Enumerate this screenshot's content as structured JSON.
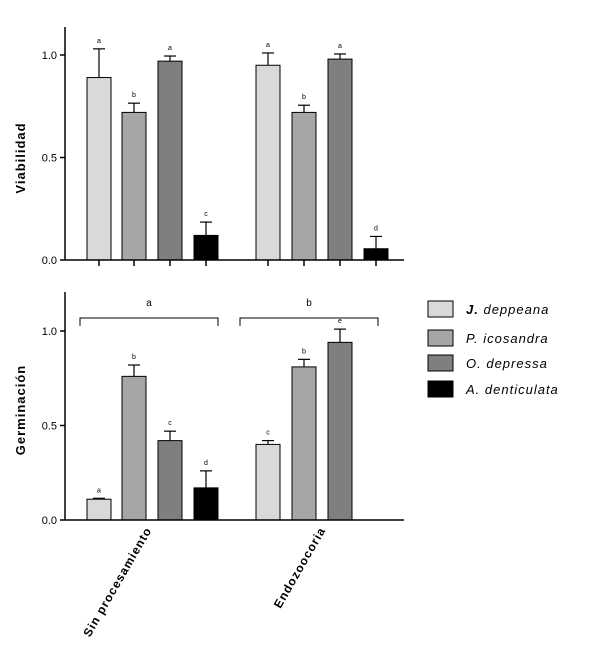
{
  "chart_data": [
    {
      "type": "bar",
      "ylabel": "Viabilidad",
      "ylim": [
        0,
        1.2
      ],
      "yticks": [
        "0.0",
        "0.5",
        "1.0"
      ],
      "categories": [
        "Sin procesamiento",
        "Endozoocoria"
      ],
      "series": [
        {
          "name": "J. deppeana",
          "color": "#d9d9d9",
          "values": [
            0.89,
            0.95
          ],
          "errors": [
            0.14,
            0.06
          ],
          "letters": [
            "a",
            "a"
          ]
        },
        {
          "name": "P. icosandra",
          "color": "#a6a6a6",
          "values": [
            0.72,
            0.72
          ],
          "errors": [
            0.045,
            0.035
          ],
          "letters": [
            "b",
            "b"
          ]
        },
        {
          "name": "O. depressa",
          "color": "#7f7f7f",
          "values": [
            0.97,
            0.98
          ],
          "errors": [
            0.025,
            0.025
          ],
          "letters": [
            "a",
            "a"
          ]
        },
        {
          "name": "A. denticulata",
          "color": "#000000",
          "values": [
            0.12,
            0.055
          ],
          "errors": [
            0.065,
            0.06
          ],
          "letters": [
            "c",
            "d"
          ]
        }
      ]
    },
    {
      "type": "bar",
      "ylabel": "Germinación",
      "ylim": [
        0,
        1.2
      ],
      "yticks": [
        "0.0",
        "0.5",
        "1.0"
      ],
      "categories": [
        "Sin procesamiento",
        "Endozoocoria"
      ],
      "series": [
        {
          "name": "J. deppeana",
          "color": "#d9d9d9",
          "values": [
            0.11,
            0.4
          ],
          "errors": [
            0.005,
            0.02
          ],
          "letters": [
            "a",
            "c"
          ]
        },
        {
          "name": "P. icosandra",
          "color": "#a6a6a6",
          "values": [
            0.76,
            0.81
          ],
          "errors": [
            0.06,
            0.04
          ],
          "letters": [
            "b",
            "b"
          ]
        },
        {
          "name": "O. depressa",
          "color": "#7f7f7f",
          "values": [
            0.42,
            0.94
          ],
          "errors": [
            0.05,
            0.07
          ],
          "letters": [
            "c",
            "e"
          ]
        },
        {
          "name": "A. denticulata",
          "color": "#000000",
          "values": [
            0.17,
            null
          ],
          "errors": [
            0.09,
            null
          ],
          "letters": [
            "d",
            null
          ]
        }
      ],
      "group_letters": [
        "a",
        "b"
      ]
    }
  ],
  "legend": {
    "placement": "right",
    "items": [
      {
        "species": "deppeana",
        "genus": "J.",
        "color": "#d9d9d9"
      },
      {
        "species": "icosandra",
        "genus": "P.",
        "color": "#a6a6a6"
      },
      {
        "species": "depressa",
        "genus": "O.",
        "color": "#7f7f7f"
      },
      {
        "species": "denticulata",
        "genus": "A.",
        "color": "#000000"
      }
    ]
  }
}
